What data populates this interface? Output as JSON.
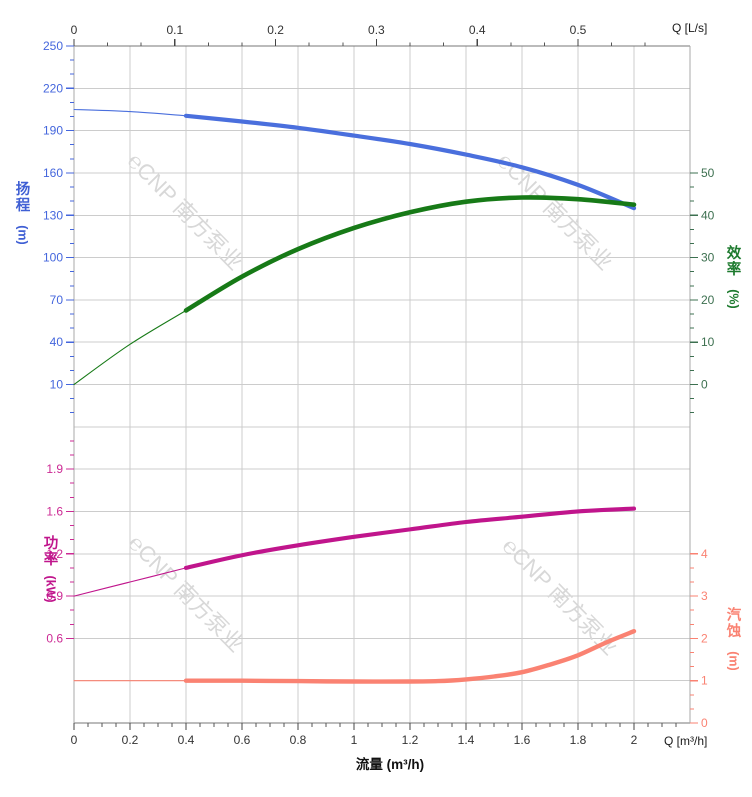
{
  "watermark": {
    "text": "℮CNP 南方泵业",
    "color": "#d8d8d8"
  },
  "colors": {
    "head_curve": "#4a6fdd",
    "efficiency_curve": "#177a17",
    "power_curve": "#c0158c",
    "npsh_curve": "#fa8272",
    "head_text": "#4466dd",
    "efficiency_text": "#3d7050",
    "power_text": "#cc2a94",
    "npsh_text": "#fa8272",
    "grid": "#cccccc",
    "spine_h": "#777777",
    "spine_v": "#aaaaaa",
    "xaxis_text": "#333333"
  },
  "top_axis": {
    "unit_label": "Q [L/s]",
    "ticks": [
      "0",
      "0.1",
      "0.2",
      "0.3",
      "0.4",
      "0.5"
    ]
  },
  "bottom_axis": {
    "unit_label": "Q [m³/h]",
    "axis_title": "流量 (m³/h)",
    "ticks": [
      "0",
      "0.2",
      "0.4",
      "0.6",
      "0.8",
      "1",
      "1.2",
      "1.4",
      "1.6",
      "1.8",
      "2"
    ]
  },
  "left_top_axis": {
    "title": "扬程",
    "unit": "(m)",
    "ticks": [
      "250",
      "220",
      "190",
      "160",
      "130",
      "100",
      "70",
      "40",
      "10"
    ]
  },
  "right_top_axis": {
    "title": "效率",
    "unit": "(%)",
    "ticks": [
      "50",
      "40",
      "30",
      "20",
      "10",
      "0"
    ]
  },
  "left_bottom_axis": {
    "title": "功率",
    "unit": "(kW)",
    "ticks": [
      "1.9",
      "1.6",
      "1.2",
      "0.9",
      "0.6"
    ]
  },
  "right_bottom_axis": {
    "title": "汽蚀",
    "unit": "(m)",
    "ticks": [
      "4",
      "3",
      "2",
      "1",
      "0"
    ]
  },
  "chart_data": {
    "type": "line",
    "x_unit": "m³/h",
    "x_range_m3h": [
      0,
      2
    ],
    "duty_thick_from": 0.4,
    "panels": [
      "head-efficiency",
      "power-npsh"
    ],
    "series": [
      {
        "name": "head",
        "label": "扬程 (m)",
        "axis": "head",
        "x": [
          0,
          0.2,
          0.4,
          0.6,
          0.8,
          1,
          1.2,
          1.4,
          1.6,
          1.8,
          2
        ],
        "values": [
          205,
          203.5,
          200.5,
          196.5,
          192,
          186.5,
          180.5,
          173,
          164,
          151.5,
          135
        ]
      },
      {
        "name": "efficiency",
        "label": "效率 (%)",
        "axis": "eff",
        "x": [
          0,
          0.2,
          0.4,
          0.6,
          0.8,
          1,
          1.2,
          1.4,
          1.6,
          1.8,
          2
        ],
        "values": [
          0,
          9.5,
          17.5,
          25.5,
          32,
          37,
          40.7,
          43.2,
          44.2,
          43.8,
          42.5
        ]
      },
      {
        "name": "power",
        "label": "功率 (kW)",
        "axis": "power",
        "x": [
          0,
          0.2,
          0.4,
          0.6,
          0.8,
          1,
          1.2,
          1.4,
          1.6,
          1.8,
          2
        ],
        "values": [
          0.9,
          1.0,
          1.1,
          1.19,
          1.28,
          1.36,
          1.43,
          1.5,
          1.55,
          1.6,
          1.62
        ]
      },
      {
        "name": "npsh",
        "label": "汽蚀 (m)",
        "axis": "npsh",
        "x": [
          0,
          0.2,
          0.4,
          0.6,
          0.8,
          1,
          1.2,
          1.3,
          1.4,
          1.5,
          1.6,
          1.7,
          1.8,
          1.9,
          2
        ],
        "values": [
          1,
          1,
          1,
          1,
          0.99,
          0.98,
          0.98,
          0.99,
          1.03,
          1.1,
          1.2,
          1.38,
          1.6,
          1.9,
          2.17
        ]
      }
    ]
  }
}
